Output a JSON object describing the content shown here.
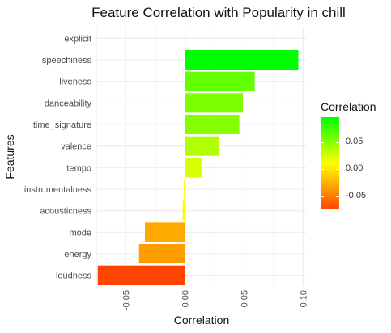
{
  "chart_data": {
    "type": "bar",
    "orientation": "horizontal",
    "title": "Feature Correlation with Popularity in chill",
    "xlabel": "Correlation",
    "ylabel": "Features",
    "categories": [
      "explicit",
      "speechiness",
      "liveness",
      "danceability",
      "time_signature",
      "valence",
      "tempo",
      "instrumentalness",
      "acousticness",
      "mode",
      "energy",
      "loudness"
    ],
    "values": [
      0.0,
      0.096,
      0.059,
      0.049,
      0.046,
      0.029,
      0.014,
      -0.001,
      -0.002,
      -0.034,
      -0.039,
      -0.074
    ],
    "xlim": [
      -0.0745,
      0.1025
    ],
    "xticks": [
      -0.05,
      0.0,
      0.05,
      0.1
    ],
    "xtick_labels": [
      "-0.05",
      "0.00",
      "0.05",
      "0.10"
    ],
    "grid": true,
    "legend": {
      "title": "Correlation",
      "position": "right",
      "ticks": [
        0.05,
        0.0,
        -0.05
      ],
      "tick_labels": [
        "0.05",
        "0.00",
        "-0.05"
      ],
      "range": [
        -0.074,
        0.096
      ]
    },
    "colors": {
      "high": "#00ff00",
      "mid": "#ffff00",
      "low": "#ff4500",
      "grid": "#ebebeb"
    }
  }
}
